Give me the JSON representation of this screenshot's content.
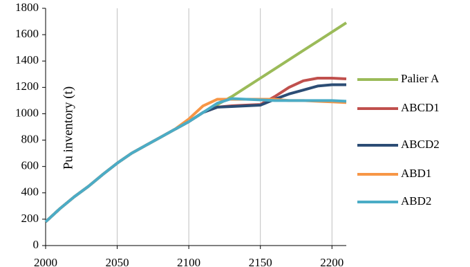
{
  "chart_data": {
    "type": "line",
    "y_label": "Pu inventory (t)",
    "x": [
      2000,
      2010,
      2020,
      2030,
      2040,
      2050,
      2060,
      2070,
      2080,
      2090,
      2100,
      2110,
      2120,
      2130,
      2140,
      2150,
      2160,
      2170,
      2180,
      2190,
      2200,
      2210
    ],
    "series": [
      {
        "name": "Palier A",
        "color": "#9bbb59",
        "values": [
          180,
          280,
          370,
          450,
          540,
          625,
          700,
          760,
          820,
          880,
          940,
          1010,
          1070,
          1130,
          1200,
          1270,
          1340,
          1410,
          1480,
          1550,
          1620,
          1690
        ]
      },
      {
        "name": "ABCD1",
        "color": "#c0504d",
        "values": [
          180,
          280,
          370,
          450,
          540,
          625,
          700,
          760,
          820,
          880,
          940,
          1010,
          1050,
          1060,
          1065,
          1070,
          1130,
          1200,
          1250,
          1270,
          1270,
          1265
        ]
      },
      {
        "name": "ABCD2",
        "color": "#2c4d75",
        "values": [
          180,
          280,
          370,
          450,
          540,
          625,
          700,
          760,
          820,
          880,
          940,
          1010,
          1050,
          1055,
          1060,
          1065,
          1110,
          1150,
          1180,
          1210,
          1220,
          1220
        ]
      },
      {
        "name": "ABD1",
        "color": "#f79646",
        "values": [
          180,
          280,
          370,
          450,
          540,
          625,
          700,
          760,
          820,
          880,
          960,
          1060,
          1110,
          1110,
          1110,
          1110,
          1110,
          1100,
          1100,
          1095,
          1090,
          1085
        ]
      },
      {
        "name": "ABD2",
        "color": "#4bacc6",
        "values": [
          180,
          280,
          370,
          450,
          540,
          625,
          700,
          760,
          820,
          880,
          940,
          1010,
          1080,
          1115,
          1110,
          1105,
          1100,
          1100,
          1100,
          1100,
          1100,
          1095
        ]
      }
    ],
    "xlim": [
      2000,
      2210
    ],
    "xticks": [
      2000,
      2050,
      2100,
      2150,
      2200
    ],
    "ylim": [
      0,
      1800
    ],
    "yticks": [
      0,
      200,
      400,
      600,
      800,
      1000,
      1200,
      1400,
      1600,
      1800
    ],
    "grid": "x",
    "legend": "right"
  }
}
